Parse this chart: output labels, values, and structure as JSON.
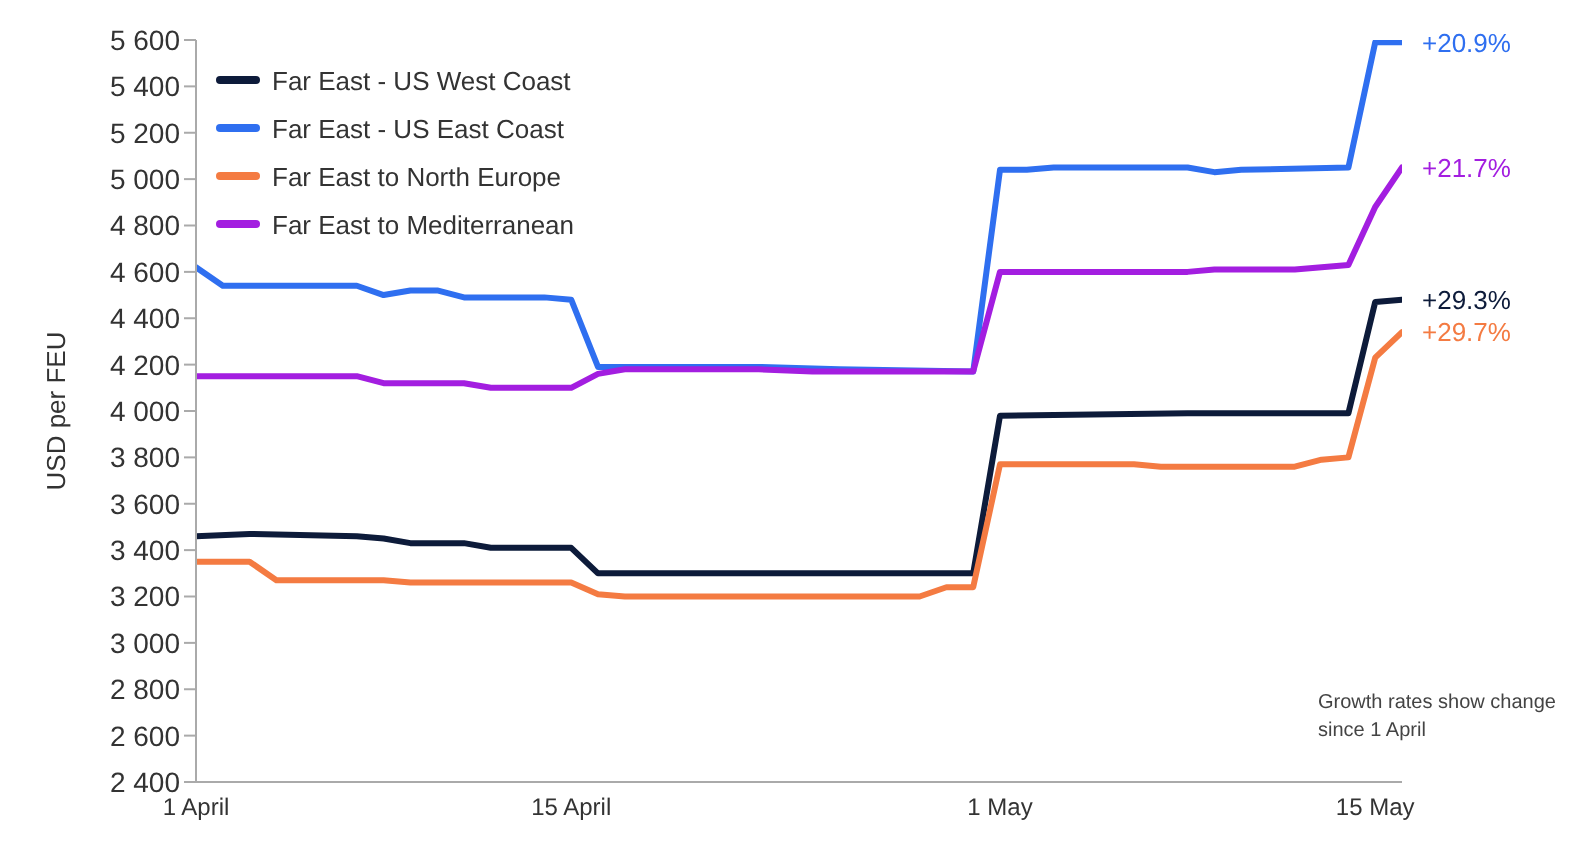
{
  "chart_data": {
    "type": "line",
    "ylabel": "USD per FEU",
    "legend": "top left",
    "xlim": [
      "--04-01",
      "--05-16"
    ],
    "xticks": [
      {
        "value": "--04-01",
        "label": "1 April"
      },
      {
        "value": "--04-15",
        "label": "15 April"
      },
      {
        "value": "--05-01",
        "label": "1 May"
      },
      {
        "value": "--05-15",
        "label": "15 May"
      }
    ],
    "ylim": [
      2400,
      5600
    ],
    "yticks": [
      {
        "value": 2400,
        "label": "2 400"
      },
      {
        "value": 2600,
        "label": "2 600"
      },
      {
        "value": 2800,
        "label": "2 800"
      },
      {
        "value": 3000,
        "label": "3 000"
      },
      {
        "value": 3200,
        "label": "3 200"
      },
      {
        "value": 3400,
        "label": "3 400"
      },
      {
        "value": 3600,
        "label": "3 600"
      },
      {
        "value": 3800,
        "label": "3 800"
      },
      {
        "value": 4000,
        "label": "4 000"
      },
      {
        "value": 4200,
        "label": "4 200"
      },
      {
        "value": 4400,
        "label": "4 400"
      },
      {
        "value": 4600,
        "label": "4 600"
      },
      {
        "value": 4800,
        "label": "4 800"
      },
      {
        "value": 5000,
        "label": "5 000"
      },
      {
        "value": 5200,
        "label": "5 200"
      },
      {
        "value": 5400,
        "label": "5 400"
      },
      {
        "value": 5600,
        "label": "5 600"
      }
    ],
    "series": [
      {
        "name": "Far East - US West Coast",
        "color": "#0d1b3a",
        "x": [
          "--04-01",
          "--04-03",
          "--04-07",
          "--04-08",
          "--04-09",
          "--04-11",
          "--04-12",
          "--04-15",
          "--04-16",
          "--04-30",
          "--05-01",
          "--05-08",
          "--05-14",
          "--05-15",
          "--05-16"
        ],
        "values": [
          3460,
          3470,
          3460,
          3450,
          3430,
          3430,
          3410,
          3410,
          3300,
          3300,
          3980,
          3990,
          3990,
          4470,
          4480
        ]
      },
      {
        "name": "Far East - US East Coast",
        "color": "#2f6ff0",
        "x": [
          "--04-01",
          "--04-02",
          "--04-07",
          "--04-08",
          "--04-09",
          "--04-10",
          "--04-11",
          "--04-14",
          "--04-15",
          "--04-16",
          "--04-22",
          "--04-25",
          "--04-30",
          "--05-01",
          "--05-02",
          "--05-03",
          "--05-08",
          "--05-09",
          "--05-10",
          "--05-14",
          "--05-15",
          "--05-16"
        ],
        "values": [
          4620,
          4540,
          4540,
          4500,
          4520,
          4520,
          4490,
          4490,
          4480,
          4190,
          4190,
          4180,
          4170,
          5040,
          5040,
          5050,
          5050,
          5030,
          5040,
          5050,
          5590,
          5590
        ]
      },
      {
        "name": "Far East to North Europe",
        "color": "#f47b42",
        "x": [
          "--04-01",
          "--04-03",
          "--04-04",
          "--04-08",
          "--04-09",
          "--04-15",
          "--04-16",
          "--04-17",
          "--04-28",
          "--04-29",
          "--04-30",
          "--05-01",
          "--05-06",
          "--05-07",
          "--05-12",
          "--05-13",
          "--05-14",
          "--05-15",
          "--05-16"
        ],
        "values": [
          3350,
          3350,
          3270,
          3270,
          3260,
          3260,
          3210,
          3200,
          3200,
          3240,
          3240,
          3770,
          3770,
          3760,
          3760,
          3790,
          3800,
          4230,
          4340
        ]
      },
      {
        "name": "Far East to Mediterranean",
        "color": "#a31ee0",
        "x": [
          "--04-01",
          "--04-07",
          "--04-08",
          "--04-11",
          "--04-12",
          "--04-15",
          "--04-16",
          "--04-17",
          "--04-22",
          "--04-24",
          "--04-29",
          "--04-30",
          "--05-01",
          "--05-08",
          "--05-09",
          "--05-12",
          "--05-13",
          "--05-14",
          "--05-15",
          "--05-16"
        ],
        "values": [
          4150,
          4150,
          4120,
          4120,
          4100,
          4100,
          4160,
          4180,
          4180,
          4170,
          4170,
          4170,
          4600,
          4600,
          4610,
          4610,
          4620,
          4630,
          4880,
          5050
        ]
      }
    ],
    "annotations": [
      {
        "text": "+20.9%",
        "x": "--05-16",
        "y": 5590
      },
      {
        "text": "+21.7%",
        "x": "--05-16",
        "y": 5050
      },
      {
        "text": "+29.3%",
        "x": "--05-16",
        "y": 4480
      },
      {
        "text": "+29.7%",
        "x": "--05-16",
        "y": 4340
      },
      "Growth rates show change since 1 April"
    ]
  }
}
